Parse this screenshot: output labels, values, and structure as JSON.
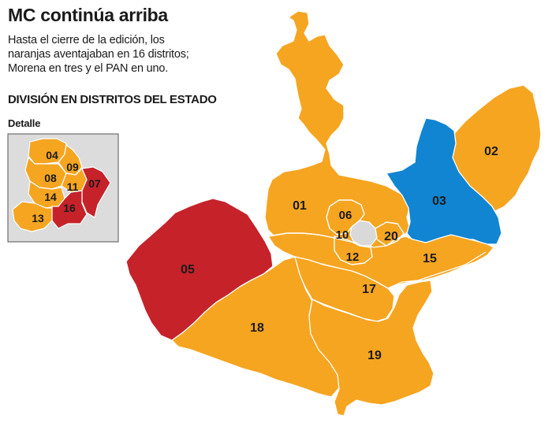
{
  "header": {
    "title": "MC continúa arriba",
    "subtitle_lines": [
      "Hasta el cierre de la edición, los",
      "naranjas aventajaban en 16 distritos;",
      "Morena en tres y el PAN en uno."
    ],
    "section_title": "DIVISIÓN EN DISTRITOS DEL ESTADO",
    "detail_label": "Detalle"
  },
  "colors": {
    "mc_orange": "#f6a521",
    "morena_red": "#c6222a",
    "pan_blue": "#1185d2",
    "metro_gray": "#d9d9d9",
    "inset_bg": "#dcdcdc"
  },
  "map": {
    "districts": [
      {
        "id": "01",
        "party": "MC"
      },
      {
        "id": "02",
        "party": "MC"
      },
      {
        "id": "03",
        "party": "PAN"
      },
      {
        "id": "05",
        "party": "Morena"
      },
      {
        "id": "06",
        "party": "MC"
      },
      {
        "id": "10",
        "party": "MC"
      },
      {
        "id": "12",
        "party": "MC"
      },
      {
        "id": "15",
        "party": "MC"
      },
      {
        "id": "17",
        "party": "MC"
      },
      {
        "id": "18",
        "party": "MC"
      },
      {
        "id": "19",
        "party": "MC"
      },
      {
        "id": "20",
        "party": "MC"
      }
    ],
    "inset_districts": [
      {
        "id": "04",
        "party": "MC"
      },
      {
        "id": "07",
        "party": "Morena"
      },
      {
        "id": "08",
        "party": "MC"
      },
      {
        "id": "09",
        "party": "MC"
      },
      {
        "id": "11",
        "party": "MC"
      },
      {
        "id": "13",
        "party": "MC"
      },
      {
        "id": "14",
        "party": "MC"
      },
      {
        "id": "16",
        "party": "Morena"
      }
    ]
  }
}
